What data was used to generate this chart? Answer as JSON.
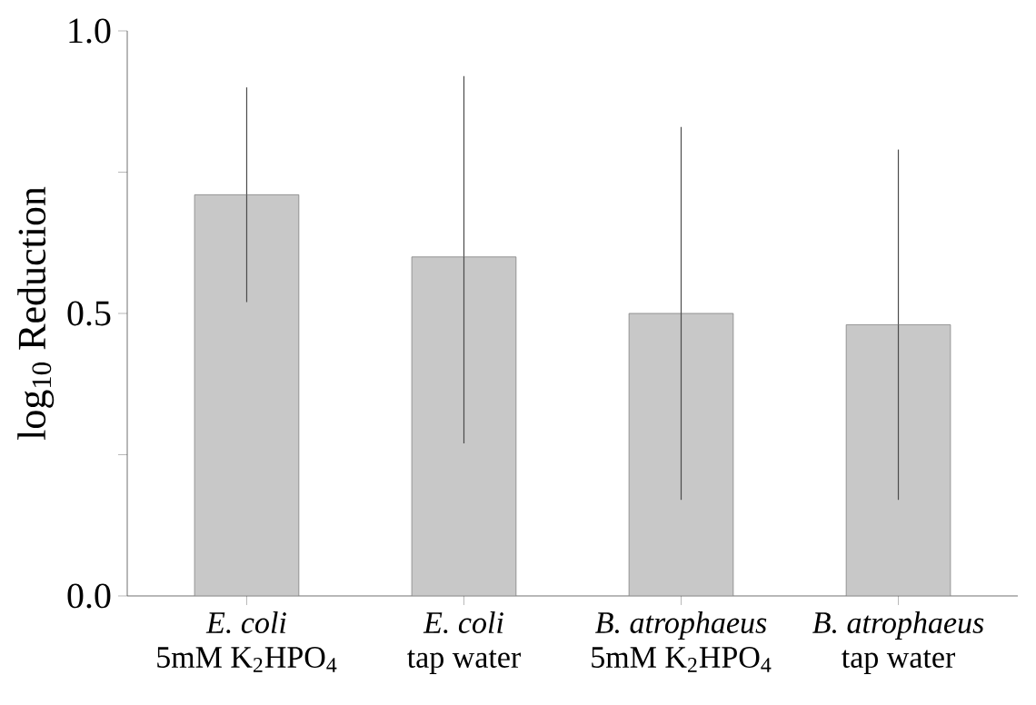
{
  "chart_data": {
    "type": "bar",
    "ylabel": "log$_{10}$ Reduction",
    "categories": [
      "*E. coli*\n5mM K$_{2}$HPO$_{4}$",
      "*E. coli*\ntap water",
      "*B. atrophaeus*\n5mM K$_{2}$HPO$_{4}$",
      "*B. atrophaeus*\ntap water"
    ],
    "values": [
      0.71,
      0.6,
      0.5,
      0.48
    ],
    "errors": [
      [
        0.52,
        0.9
      ],
      [
        0.27,
        0.92
      ],
      [
        0.17,
        0.83
      ],
      [
        0.17,
        0.79
      ]
    ],
    "color": "#c8c8c8",
    "ylim": [
      0,
      1.0
    ],
    "yticks": [
      {
        "value": 0,
        "label": "0.0"
      },
      {
        "value": 0.25,
        "label": null
      },
      {
        "value": 0.5,
        "label": "0.5"
      },
      {
        "value": 0.75,
        "label": null
      },
      {
        "value": 1.0,
        "label": "1.0"
      }
    ]
  }
}
